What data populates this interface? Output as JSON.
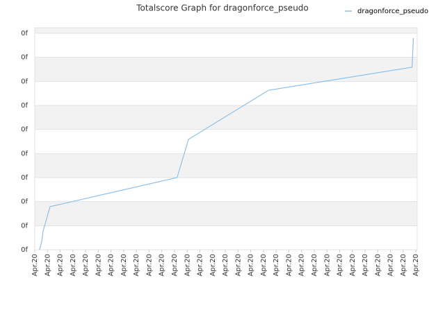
{
  "chart_data": {
    "type": "line",
    "title": "Totalscore Graph for dragonforce_pseudo",
    "x": [
      0.38,
      0.55,
      0.66,
      1.2,
      11.2,
      12.1,
      18.4,
      29.7,
      29.8
    ],
    "series": [
      {
        "name": "dragonforce_pseudo",
        "color": "#8cc0ea",
        "values": [
          0,
          0.35,
          0.78,
          1.79,
          3.0,
          4.59,
          6.63,
          7.59,
          8.8
        ]
      }
    ],
    "xlim": [
      0,
      30.1
    ],
    "xticks": [
      {
        "value": 0,
        "label": "Apr.20"
      },
      {
        "value": 1,
        "label": "Apr.20"
      },
      {
        "value": 2,
        "label": "Apr.20"
      },
      {
        "value": 3,
        "label": "Apr.20"
      },
      {
        "value": 4,
        "label": "Apr.20"
      },
      {
        "value": 5,
        "label": "Apr.20"
      },
      {
        "value": 6,
        "label": "Apr.20"
      },
      {
        "value": 7,
        "label": "Apr.20"
      },
      {
        "value": 8,
        "label": "Apr.20"
      },
      {
        "value": 9,
        "label": "Apr.20"
      },
      {
        "value": 10,
        "label": "Apr.20"
      },
      {
        "value": 11,
        "label": "Apr.20"
      },
      {
        "value": 12,
        "label": "Apr.20"
      },
      {
        "value": 13,
        "label": "Apr.20"
      },
      {
        "value": 14,
        "label": "Apr.20"
      },
      {
        "value": 15,
        "label": "Apr.20"
      },
      {
        "value": 16,
        "label": "Apr.20"
      },
      {
        "value": 17,
        "label": "Apr.20"
      },
      {
        "value": 18,
        "label": "Apr.20"
      },
      {
        "value": 19,
        "label": "Apr.20"
      },
      {
        "value": 20,
        "label": "Apr.20"
      },
      {
        "value": 21,
        "label": "Apr.20"
      },
      {
        "value": 22,
        "label": "Apr.20"
      },
      {
        "value": 23,
        "label": "Apr.20"
      },
      {
        "value": 24,
        "label": "Apr.20"
      },
      {
        "value": 25,
        "label": "Apr.20"
      },
      {
        "value": 26,
        "label": "Apr.20"
      },
      {
        "value": 27,
        "label": "Apr.20"
      },
      {
        "value": 28,
        "label": "Apr.20"
      },
      {
        "value": 29,
        "label": "Apr.20"
      },
      {
        "value": 30,
        "label": "Apr.20"
      }
    ],
    "ylim": [
      0,
      9.23
    ],
    "yticks": [
      {
        "value": 0,
        "label": "0f"
      },
      {
        "value": 1,
        "label": "0f"
      },
      {
        "value": 2,
        "label": "0f"
      },
      {
        "value": 3,
        "label": "0f"
      },
      {
        "value": 4,
        "label": "0f"
      },
      {
        "value": 5,
        "label": "0f"
      },
      {
        "value": 6,
        "label": "0f"
      },
      {
        "value": 7,
        "label": "0f"
      },
      {
        "value": 8,
        "label": "0f"
      },
      {
        "value": 9,
        "label": "0f"
      }
    ],
    "grid": true,
    "legend": "top-right"
  }
}
